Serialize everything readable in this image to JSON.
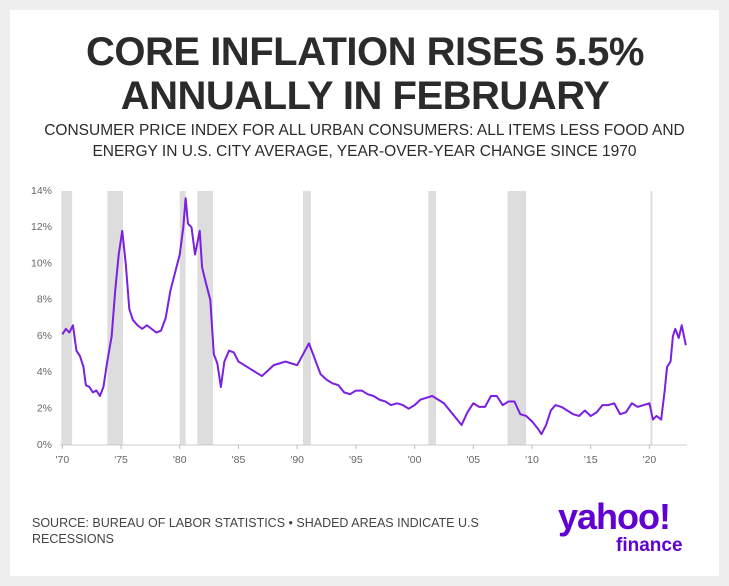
{
  "chart_data": {
    "type": "line",
    "title": "CORE INFLATION RISES 5.5% ANNUALLY IN FEBRUARY",
    "subtitle": "CONSUMER PRICE INDEX FOR ALL URBAN CONSUMERS: ALL ITEMS LESS FOOD AND ENERGY IN U.S. CITY AVERAGE, YEAR-OVER-YEAR CHANGE SINCE 1970",
    "source": "SOURCE: BUREAU OF LABOR STATISTICS • SHADED AREAS INDICATE U.S RECESSIONS",
    "brand": "yahoo!",
    "brand_sub": "finance",
    "color": "#7b1fe0",
    "recession_color": "#dddddd",
    "x": [
      1970.0,
      1970.3,
      1970.6,
      1970.9,
      1971.2,
      1971.5,
      1971.8,
      1972.0,
      1972.3,
      1972.6,
      1972.9,
      1973.2,
      1973.5,
      1973.8,
      1974.2,
      1974.5,
      1974.8,
      1975.1,
      1975.4,
      1975.7,
      1976.0,
      1976.4,
      1976.8,
      1977.2,
      1977.6,
      1978.0,
      1978.4,
      1978.8,
      1979.2,
      1979.6,
      1980.0,
      1980.3,
      1980.5,
      1980.7,
      1981.0,
      1981.3,
      1981.7,
      1981.9,
      1982.2,
      1982.6,
      1982.9,
      1983.2,
      1983.5,
      1983.8,
      1984.2,
      1984.6,
      1985.0,
      1985.5,
      1986.0,
      1986.5,
      1987.0,
      1987.5,
      1988.0,
      1988.5,
      1989.0,
      1989.5,
      1990.0,
      1990.5,
      1991.0,
      1991.3,
      1991.7,
      1992.0,
      1992.5,
      1993.0,
      1993.5,
      1994.0,
      1994.5,
      1995.0,
      1995.5,
      1996.0,
      1996.5,
      1997.0,
      1997.5,
      1998.0,
      1998.5,
      1999.0,
      1999.5,
      2000.0,
      2000.5,
      2001.0,
      2001.5,
      2002.0,
      2002.5,
      2003.0,
      2003.5,
      2004.0,
      2004.5,
      2005.0,
      2005.5,
      2006.0,
      2006.5,
      2007.0,
      2007.5,
      2008.0,
      2008.5,
      2009.0,
      2009.5,
      2010.0,
      2010.5,
      2010.8,
      2011.2,
      2011.6,
      2012.0,
      2012.5,
      2013.0,
      2013.5,
      2014.0,
      2014.5,
      2015.0,
      2015.5,
      2016.0,
      2016.5,
      2017.0,
      2017.5,
      2018.0,
      2018.5,
      2019.0,
      2019.5,
      2020.0,
      2020.3,
      2020.6,
      2021.0,
      2021.3,
      2021.5,
      2021.8,
      2022.0,
      2022.2,
      2022.5,
      2022.75,
      2023.1
    ],
    "values": [
      6.1,
      6.4,
      6.2,
      6.6,
      5.2,
      4.9,
      4.3,
      3.3,
      3.2,
      2.9,
      3.0,
      2.7,
      3.2,
      4.5,
      6.0,
      8.5,
      10.5,
      11.8,
      10.0,
      7.5,
      6.9,
      6.6,
      6.4,
      6.6,
      6.4,
      6.2,
      6.3,
      7.0,
      8.5,
      9.5,
      10.5,
      12.0,
      13.6,
      12.2,
      12.0,
      10.5,
      11.8,
      9.8,
      9.0,
      8.0,
      5.0,
      4.5,
      3.2,
      4.6,
      5.2,
      5.1,
      4.6,
      4.4,
      4.2,
      4.0,
      3.8,
      4.1,
      4.4,
      4.5,
      4.6,
      4.5,
      4.4,
      5.0,
      5.6,
      5.1,
      4.4,
      3.9,
      3.6,
      3.4,
      3.3,
      2.9,
      2.8,
      3.0,
      3.0,
      2.8,
      2.7,
      2.5,
      2.4,
      2.2,
      2.3,
      2.2,
      2.0,
      2.2,
      2.5,
      2.6,
      2.7,
      2.5,
      2.3,
      1.9,
      1.5,
      1.1,
      1.8,
      2.3,
      2.1,
      2.1,
      2.7,
      2.7,
      2.2,
      2.4,
      2.4,
      1.7,
      1.6,
      1.3,
      0.9,
      0.6,
      1.1,
      1.9,
      2.2,
      2.1,
      1.9,
      1.7,
      1.6,
      1.9,
      1.6,
      1.8,
      2.2,
      2.2,
      2.3,
      1.7,
      1.8,
      2.3,
      2.1,
      2.2,
      2.3,
      1.4,
      1.6,
      1.4,
      3.0,
      4.3,
      4.6,
      6.0,
      6.4,
      5.9,
      6.6,
      5.5
    ],
    "recessions": [
      [
        1969.92,
        1970.83
      ],
      [
        1973.83,
        1975.17
      ],
      [
        1980.0,
        1980.5
      ],
      [
        1981.5,
        1982.83
      ],
      [
        1990.5,
        1991.17
      ],
      [
        2001.17,
        2001.83
      ],
      [
        2007.92,
        2009.5
      ],
      [
        2020.08,
        2020.25
      ]
    ],
    "xlim": [
      1969.8,
      2023.2
    ],
    "xticks": [
      {
        "value": 1970,
        "label": "'70"
      },
      {
        "value": 1975,
        "label": "'75"
      },
      {
        "value": 1980,
        "label": "'80"
      },
      {
        "value": 1985,
        "label": "'85"
      },
      {
        "value": 1990,
        "label": "'90"
      },
      {
        "value": 1995,
        "label": "'95"
      },
      {
        "value": 2000,
        "label": "'00"
      },
      {
        "value": 2005,
        "label": "'05"
      },
      {
        "value": 2010,
        "label": "'10"
      },
      {
        "value": 2015,
        "label": "'15"
      },
      {
        "value": 2020,
        "label": "'20"
      }
    ],
    "ylim": [
      0,
      14
    ],
    "yticks": [
      {
        "value": 0,
        "label": "0%"
      },
      {
        "value": 2,
        "label": "2%"
      },
      {
        "value": 4,
        "label": "4%"
      },
      {
        "value": 6,
        "label": "6%"
      },
      {
        "value": 8,
        "label": "8%"
      },
      {
        "value": 10,
        "label": "10%"
      },
      {
        "value": 12,
        "label": "12%"
      },
      {
        "value": 14,
        "label": "14%"
      }
    ]
  }
}
